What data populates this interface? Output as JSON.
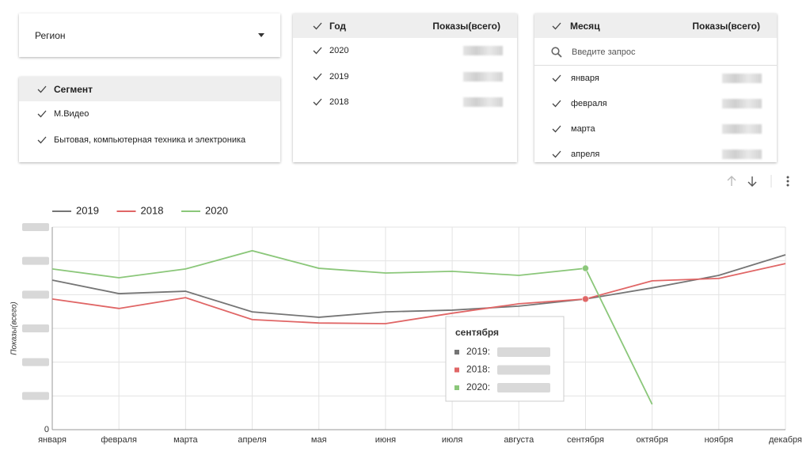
{
  "filters": {
    "region": {
      "label": "Регион"
    },
    "segment": {
      "title": "Сегмент",
      "items": [
        "М.Видео",
        "Бытовая, компьютерная техника и электроника"
      ]
    },
    "year": {
      "title": "Год",
      "metric": "Показы(всего)",
      "items": [
        "2020",
        "2019",
        "2018"
      ]
    },
    "month": {
      "title": "Месяц",
      "metric": "Показы(всего)",
      "search_placeholder": "Введите запрос",
      "items": [
        "января",
        "февраля",
        "марта",
        "апреля"
      ]
    }
  },
  "chart_data": {
    "type": "line",
    "y_label": "Показы(всего)",
    "categories": [
      "января",
      "февраля",
      "марта",
      "апреля",
      "мая",
      "июня",
      "июля",
      "августа",
      "сентября",
      "октября",
      "ноября",
      "декабря"
    ],
    "series": [
      {
        "name": "2019",
        "color": "#757575",
        "values": [
          4.43,
          4.03,
          4.1,
          3.49,
          3.33,
          3.49,
          3.54,
          3.66,
          3.87,
          4.2,
          4.57,
          5.18
        ]
      },
      {
        "name": "2018",
        "color": "#e06666",
        "values": [
          3.87,
          3.59,
          3.91,
          3.26,
          3.16,
          3.14,
          3.45,
          3.73,
          3.87,
          4.41,
          4.48,
          4.92
        ]
      },
      {
        "name": "2020",
        "color": "#8bc77a",
        "values": [
          4.76,
          4.5,
          4.76,
          5.3,
          4.78,
          4.64,
          4.69,
          4.57,
          4.78,
          0.75,
          null,
          null
        ]
      }
    ],
    "ylim": [
      0,
      6
    ],
    "yticks": [
      {
        "value": 0,
        "label": "0"
      },
      1,
      2,
      3,
      4,
      5,
      6
    ],
    "grid": true,
    "tooltip": {
      "title": "сентября",
      "items": [
        "2019:",
        "2018:",
        "2020:"
      ]
    }
  }
}
